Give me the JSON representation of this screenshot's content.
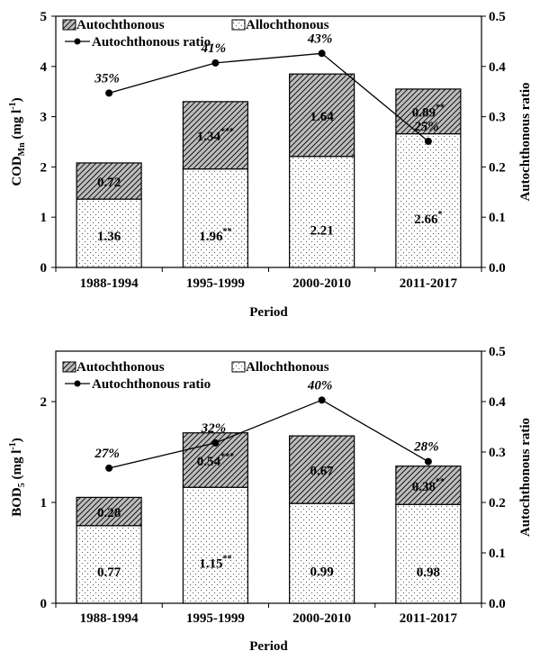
{
  "chart_data": [
    {
      "type": "bar",
      "stacked": true,
      "categories": [
        "1988-1994",
        "1995-1999",
        "2000-2010",
        "2011-2017"
      ],
      "xlabel": "Period",
      "ylabel_main": "COD",
      "ylabel_sub": "Mn",
      "ylabel_unit": " (mg l",
      "ylabel_unit_sup": "-1",
      "ylabel_close": ")",
      "y2label": "Autochthonous ratio",
      "ylim": [
        0,
        5
      ],
      "y_ticks": [
        "0",
        "1",
        "2",
        "3",
        "4",
        "5"
      ],
      "y2lim": [
        0,
        0.5
      ],
      "y2_ticks": [
        "0.0",
        "0.1",
        "0.2",
        "0.3",
        "0.4",
        "0.5"
      ],
      "legend": {
        "autochthonous": "Autochthonous",
        "allochthonous": "Allochthonous",
        "ratio": "Autochthonous ratio"
      },
      "series": [
        {
          "name": "Allochthonous",
          "values": [
            1.36,
            1.96,
            2.21,
            2.66
          ],
          "labels": [
            "1.36",
            "1.96",
            "2.21",
            "2.66"
          ],
          "marks": [
            "",
            "**",
            "",
            "*"
          ]
        },
        {
          "name": "Autochthonous",
          "values": [
            0.72,
            1.34,
            1.64,
            0.89
          ],
          "labels": [
            "0.72",
            "1.34",
            "1.64",
            "0.89"
          ],
          "marks": [
            "",
            "***",
            "",
            "**"
          ]
        }
      ],
      "ratio": {
        "name": "Autochthonous ratio",
        "values": [
          0.347,
          0.407,
          0.426,
          0.251
        ],
        "labels": [
          "35%",
          "41%",
          "43%",
          "25%"
        ]
      }
    },
    {
      "type": "bar",
      "stacked": true,
      "categories": [
        "1988-1994",
        "1995-1999",
        "2000-2010",
        "2011-2017"
      ],
      "xlabel": "Period",
      "ylabel_main": "BOD",
      "ylabel_sub": "5",
      "ylabel_unit": " (mg l",
      "ylabel_unit_sup": "-1",
      "ylabel_close": ")",
      "y2label": "Autochthonous ratio",
      "ylim": [
        0,
        2.5
      ],
      "y_ticks": [
        "0",
        "1",
        "2"
      ],
      "y_tick_values": [
        0,
        1,
        2
      ],
      "y2lim": [
        0,
        0.5
      ],
      "y2_ticks": [
        "0.0",
        "0.1",
        "0.2",
        "0.3",
        "0.4",
        "0.5"
      ],
      "legend": {
        "autochthonous": "Autochthonous",
        "allochthonous": "Allochthonous",
        "ratio": "Autochthonous ratio"
      },
      "series": [
        {
          "name": "Allochthonous",
          "values": [
            0.77,
            1.15,
            0.99,
            0.98
          ],
          "labels": [
            "0.77",
            "1.15",
            "0.99",
            "0.98"
          ],
          "marks": [
            "",
            "**",
            "",
            ""
          ]
        },
        {
          "name": "Autochthonous",
          "values": [
            0.28,
            0.54,
            0.67,
            0.38
          ],
          "labels": [
            "0.28",
            "0.54",
            "0.67",
            "0.38"
          ],
          "marks": [
            "",
            "***",
            "",
            "**"
          ]
        }
      ],
      "ratio": {
        "name": "Autochthonous ratio",
        "values": [
          0.268,
          0.318,
          0.403,
          0.281
        ],
        "labels": [
          "27%",
          "32%",
          "40%",
          "28%"
        ]
      }
    }
  ]
}
